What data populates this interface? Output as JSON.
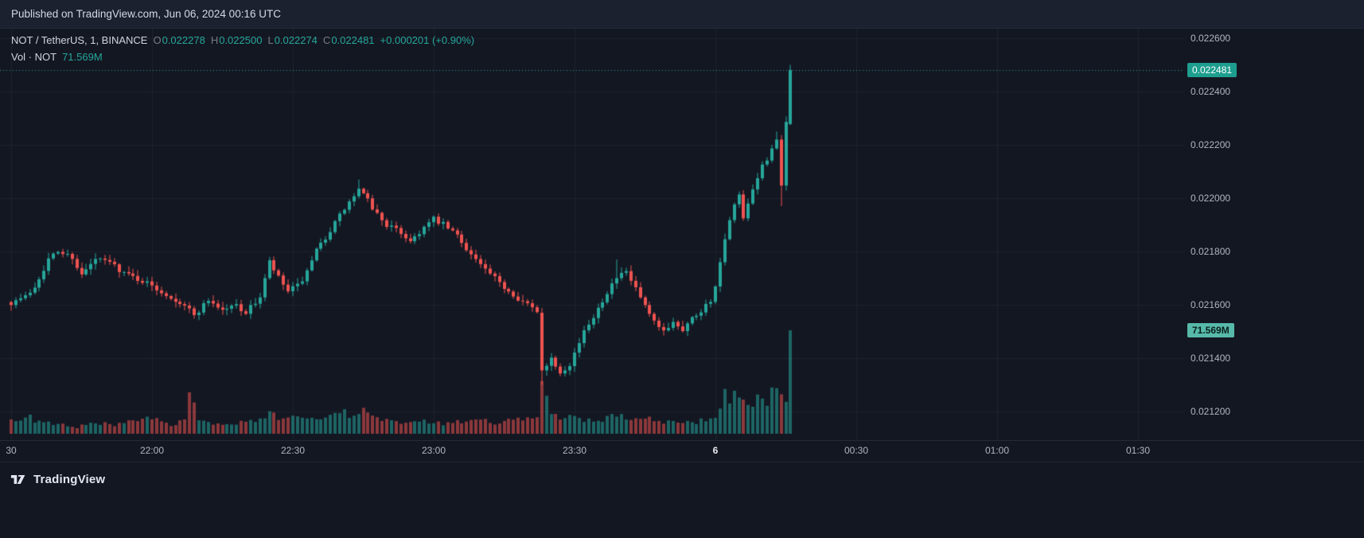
{
  "page": {
    "published": "Published on TradingView.com, Jun 06, 2024 00:16 UTC"
  },
  "legend": {
    "title": "NOT / TetherUS, 1, BINANCE",
    "ohlc": [
      {
        "label": "O",
        "value": "0.022278"
      },
      {
        "label": "H",
        "value": "0.022500"
      },
      {
        "label": "L",
        "value": "0.022274"
      },
      {
        "label": "C",
        "value": "0.022481"
      }
    ],
    "change": "+0.000201 (+0.90%)",
    "vol_label": "Vol · NOT",
    "vol_value": "71.569M"
  },
  "footer": {
    "brand": "TradingView"
  },
  "colors": {
    "bg": "#131722",
    "grid": "#1e222d",
    "up": "#26a69a",
    "down": "#ef5350",
    "up_vol": "rgba(38,166,154,0.55)",
    "down_vol": "rgba(239,83,80,0.55)",
    "price_line": "#26a69a",
    "axis_text": "#b2b5be",
    "price_badge_bg": "#1d9e8e",
    "vol_badge_bg": "#57b9aa"
  },
  "chart_data": {
    "type": "candlestick",
    "title": "NOT / TetherUS, 1, BINANCE",
    "symbol": "NOT / TetherUS",
    "interval_minutes": 1,
    "exchange": "BINANCE",
    "ohlc_current": {
      "open": "0.022278",
      "high": "0.022500",
      "low": "0.022274",
      "close": "0.022481",
      "change": "+0.000201",
      "change_pct": "+0.90%"
    },
    "volume_current_m": 71.569,
    "last_price_label": "0.022481",
    "volume_label": "71.569M",
    "price_line": 0.022481,
    "y_axis": {
      "min": 0.0210925,
      "max": 0.0226358,
      "ticks": [
        {
          "label": "0.022600",
          "value": 0.0226
        },
        {
          "label": "0.022400",
          "value": 0.0224
        },
        {
          "label": "0.022200",
          "value": 0.0222
        },
        {
          "label": "0.022000",
          "value": 0.022
        },
        {
          "label": "0.021800",
          "value": 0.0218
        },
        {
          "label": "0.021600",
          "value": 0.0216
        },
        {
          "label": "0.021400",
          "value": 0.0214
        },
        {
          "label": "0.021200",
          "value": 0.0212
        }
      ]
    },
    "x_axis": {
      "start_time": "21:30",
      "ticks": [
        {
          "label": "30",
          "t": 0
        },
        {
          "label": "22:00",
          "t": 30
        },
        {
          "label": "22:30",
          "t": 60
        },
        {
          "label": "23:00",
          "t": 90
        },
        {
          "label": "23:30",
          "t": 120
        },
        {
          "label": "6",
          "t": 150,
          "emph": true
        },
        {
          "label": "00:30",
          "t": 180
        },
        {
          "label": "01:00",
          "t": 210
        },
        {
          "label": "01:30",
          "t": 240
        }
      ]
    },
    "candle_count": 167,
    "close_keyframes": [
      [
        0,
        0.02161
      ],
      [
        3,
        0.02163
      ],
      [
        5,
        0.02167
      ],
      [
        8,
        0.02177
      ],
      [
        10,
        0.0218
      ],
      [
        13,
        0.02178
      ],
      [
        15,
        0.02171
      ],
      [
        18,
        0.02177
      ],
      [
        21,
        0.02176
      ],
      [
        24,
        0.02172
      ],
      [
        28,
        0.02169
      ],
      [
        31,
        0.02166
      ],
      [
        34,
        0.02163
      ],
      [
        37,
        0.0216
      ],
      [
        39,
        0.02156
      ],
      [
        42,
        0.02162
      ],
      [
        45,
        0.02158
      ],
      [
        48,
        0.0216
      ],
      [
        50,
        0.02157
      ],
      [
        53,
        0.02163
      ],
      [
        55,
        0.02176
      ],
      [
        57,
        0.0217
      ],
      [
        59,
        0.02165
      ],
      [
        61,
        0.02167
      ],
      [
        63,
        0.02172
      ],
      [
        65,
        0.0218
      ],
      [
        68,
        0.02188
      ],
      [
        71,
        0.02196
      ],
      [
        74,
        0.02203
      ],
      [
        76,
        0.02199
      ],
      [
        78,
        0.02194
      ],
      [
        80,
        0.0219
      ],
      [
        83,
        0.02187
      ],
      [
        85,
        0.02184
      ],
      [
        88,
        0.02189
      ],
      [
        90,
        0.02192
      ],
      [
        92,
        0.0219
      ],
      [
        95,
        0.02186
      ],
      [
        98,
        0.02179
      ],
      [
        101,
        0.02173
      ],
      [
        104,
        0.02168
      ],
      [
        107,
        0.02164
      ],
      [
        110,
        0.0216
      ],
      [
        112,
        0.02157
      ],
      [
        113,
        0.02136
      ],
      [
        115,
        0.0214
      ],
      [
        117,
        0.02135
      ],
      [
        119,
        0.02138
      ],
      [
        121,
        0.02146
      ],
      [
        123,
        0.02153
      ],
      [
        125,
        0.02159
      ],
      [
        127,
        0.02165
      ],
      [
        129,
        0.0217
      ],
      [
        131,
        0.02172
      ],
      [
        133,
        0.02166
      ],
      [
        135,
        0.02159
      ],
      [
        137,
        0.02153
      ],
      [
        139,
        0.0215
      ],
      [
        141,
        0.02154
      ],
      [
        143,
        0.02151
      ],
      [
        145,
        0.02155
      ],
      [
        147,
        0.02158
      ],
      [
        149,
        0.02162
      ],
      [
        150,
        0.02166
      ],
      [
        151,
        0.02176
      ],
      [
        152,
        0.02184
      ],
      [
        153,
        0.02191
      ],
      [
        154,
        0.02197
      ],
      [
        155,
        0.02201
      ],
      [
        156,
        0.02192
      ],
      [
        157,
        0.02197
      ],
      [
        158,
        0.02203
      ],
      [
        159,
        0.02208
      ],
      [
        160,
        0.02212
      ],
      [
        161,
        0.02215
      ],
      [
        162,
        0.02219
      ],
      [
        163,
        0.02221
      ],
      [
        164,
        0.02204
      ],
      [
        165,
        0.02228
      ],
      [
        166,
        0.022481
      ]
    ],
    "overrides": {
      "74": {
        "high": 0.02207
      },
      "113": {
        "open": 0.02157,
        "low": 0.0213
      },
      "129": {
        "high": 0.02177
      },
      "163": {
        "high": 0.02225
      },
      "164": {
        "low": 0.02197
      },
      "166": {
        "open": 0.022278,
        "high": 0.0225,
        "low": 0.022274,
        "close": 0.022481
      }
    },
    "volume_keyframes_m": [
      [
        0,
        9
      ],
      [
        3,
        12
      ],
      [
        6,
        8
      ],
      [
        10,
        6
      ],
      [
        14,
        5
      ],
      [
        18,
        7
      ],
      [
        22,
        6
      ],
      [
        26,
        8
      ],
      [
        30,
        10
      ],
      [
        34,
        7
      ],
      [
        37,
        9
      ],
      [
        38,
        30
      ],
      [
        40,
        8
      ],
      [
        44,
        6
      ],
      [
        48,
        7
      ],
      [
        52,
        8
      ],
      [
        55,
        14
      ],
      [
        58,
        9
      ],
      [
        61,
        16
      ],
      [
        63,
        12
      ],
      [
        66,
        10
      ],
      [
        69,
        13
      ],
      [
        72,
        14
      ],
      [
        74,
        16
      ],
      [
        77,
        12
      ],
      [
        80,
        9
      ],
      [
        84,
        7
      ],
      [
        88,
        8
      ],
      [
        92,
        7
      ],
      [
        96,
        8
      ],
      [
        100,
        9
      ],
      [
        104,
        8
      ],
      [
        108,
        9
      ],
      [
        112,
        12
      ],
      [
        113,
        40
      ],
      [
        114,
        22
      ],
      [
        116,
        14
      ],
      [
        118,
        12
      ],
      [
        120,
        10
      ],
      [
        122,
        9
      ],
      [
        125,
        10
      ],
      [
        128,
        12
      ],
      [
        131,
        11
      ],
      [
        134,
        9
      ],
      [
        137,
        10
      ],
      [
        140,
        8
      ],
      [
        143,
        7
      ],
      [
        146,
        8
      ],
      [
        149,
        10
      ],
      [
        150,
        14
      ],
      [
        151,
        22
      ],
      [
        152,
        26
      ],
      [
        153,
        24
      ],
      [
        154,
        26
      ],
      [
        155,
        22
      ],
      [
        156,
        28
      ],
      [
        157,
        20
      ],
      [
        158,
        24
      ],
      [
        159,
        22
      ],
      [
        160,
        26
      ],
      [
        161,
        24
      ],
      [
        162,
        30
      ],
      [
        163,
        26
      ],
      [
        164,
        28
      ],
      [
        165,
        24
      ],
      [
        166,
        71.569
      ]
    ]
  }
}
